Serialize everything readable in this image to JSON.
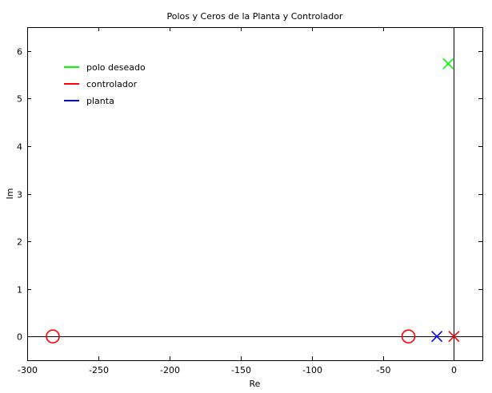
{
  "chart_data": {
    "type": "scatter",
    "title": "Polos y Ceros de la Planta y Controlador",
    "xlabel": "Re",
    "ylabel": "Im",
    "xlim": [
      -300,
      20
    ],
    "ylim": [
      -0.5,
      6.5
    ],
    "x_ticks": [
      -300,
      -250,
      -200,
      -150,
      -100,
      -50,
      0
    ],
    "y_ticks": [
      0,
      1,
      2,
      3,
      4,
      5,
      6
    ],
    "grid": false,
    "reference_lines": {
      "x": 0,
      "y": 0
    },
    "legend_placement": "top-left",
    "series": [
      {
        "name": "polo deseado",
        "color": "#00ff00",
        "points": [
          {
            "x": -4,
            "y": 5.73,
            "marker": "x"
          }
        ]
      },
      {
        "name": "controlador",
        "color": "#ff0000",
        "points": [
          {
            "x": 0,
            "y": 0,
            "marker": "x"
          },
          {
            "x": -32,
            "y": 0,
            "marker": "o"
          },
          {
            "x": -282,
            "y": 0,
            "marker": "o"
          }
        ]
      },
      {
        "name": "planta",
        "color": "#0000ff",
        "points": [
          {
            "x": -12,
            "y": 0,
            "marker": "x"
          }
        ]
      }
    ]
  }
}
